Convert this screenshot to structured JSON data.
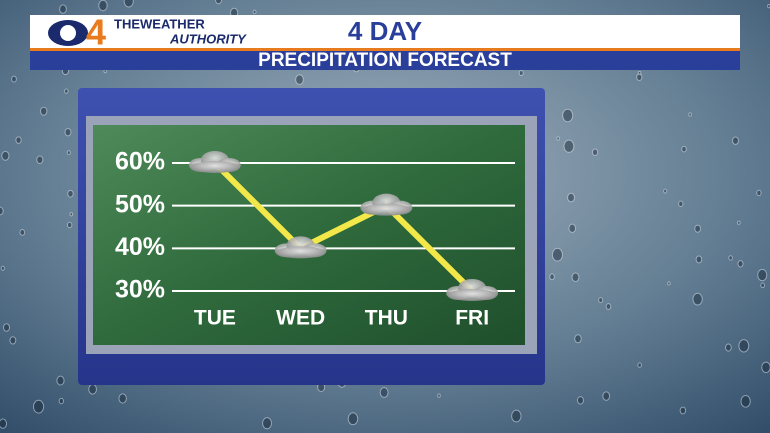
{
  "logo": {
    "channel": "4",
    "tagline_top": "THEWEATHER",
    "tagline_bottom": "AUTHORITY"
  },
  "chart_data": {
    "type": "line",
    "title": "4 DAY",
    "subtitle": "PRECIPITATION FORECAST",
    "categories": [
      "TUE",
      "WED",
      "THU",
      "FRI"
    ],
    "values": [
      60,
      40,
      50,
      30
    ],
    "color": "#f2e84a",
    "ylim": [
      30,
      60
    ],
    "yticks": [
      {
        "value": 60,
        "label": "60%"
      },
      {
        "value": 50,
        "label": "50%"
      },
      {
        "value": 40,
        "label": "40%"
      },
      {
        "value": 30,
        "label": "30%"
      }
    ],
    "grid": true
  }
}
